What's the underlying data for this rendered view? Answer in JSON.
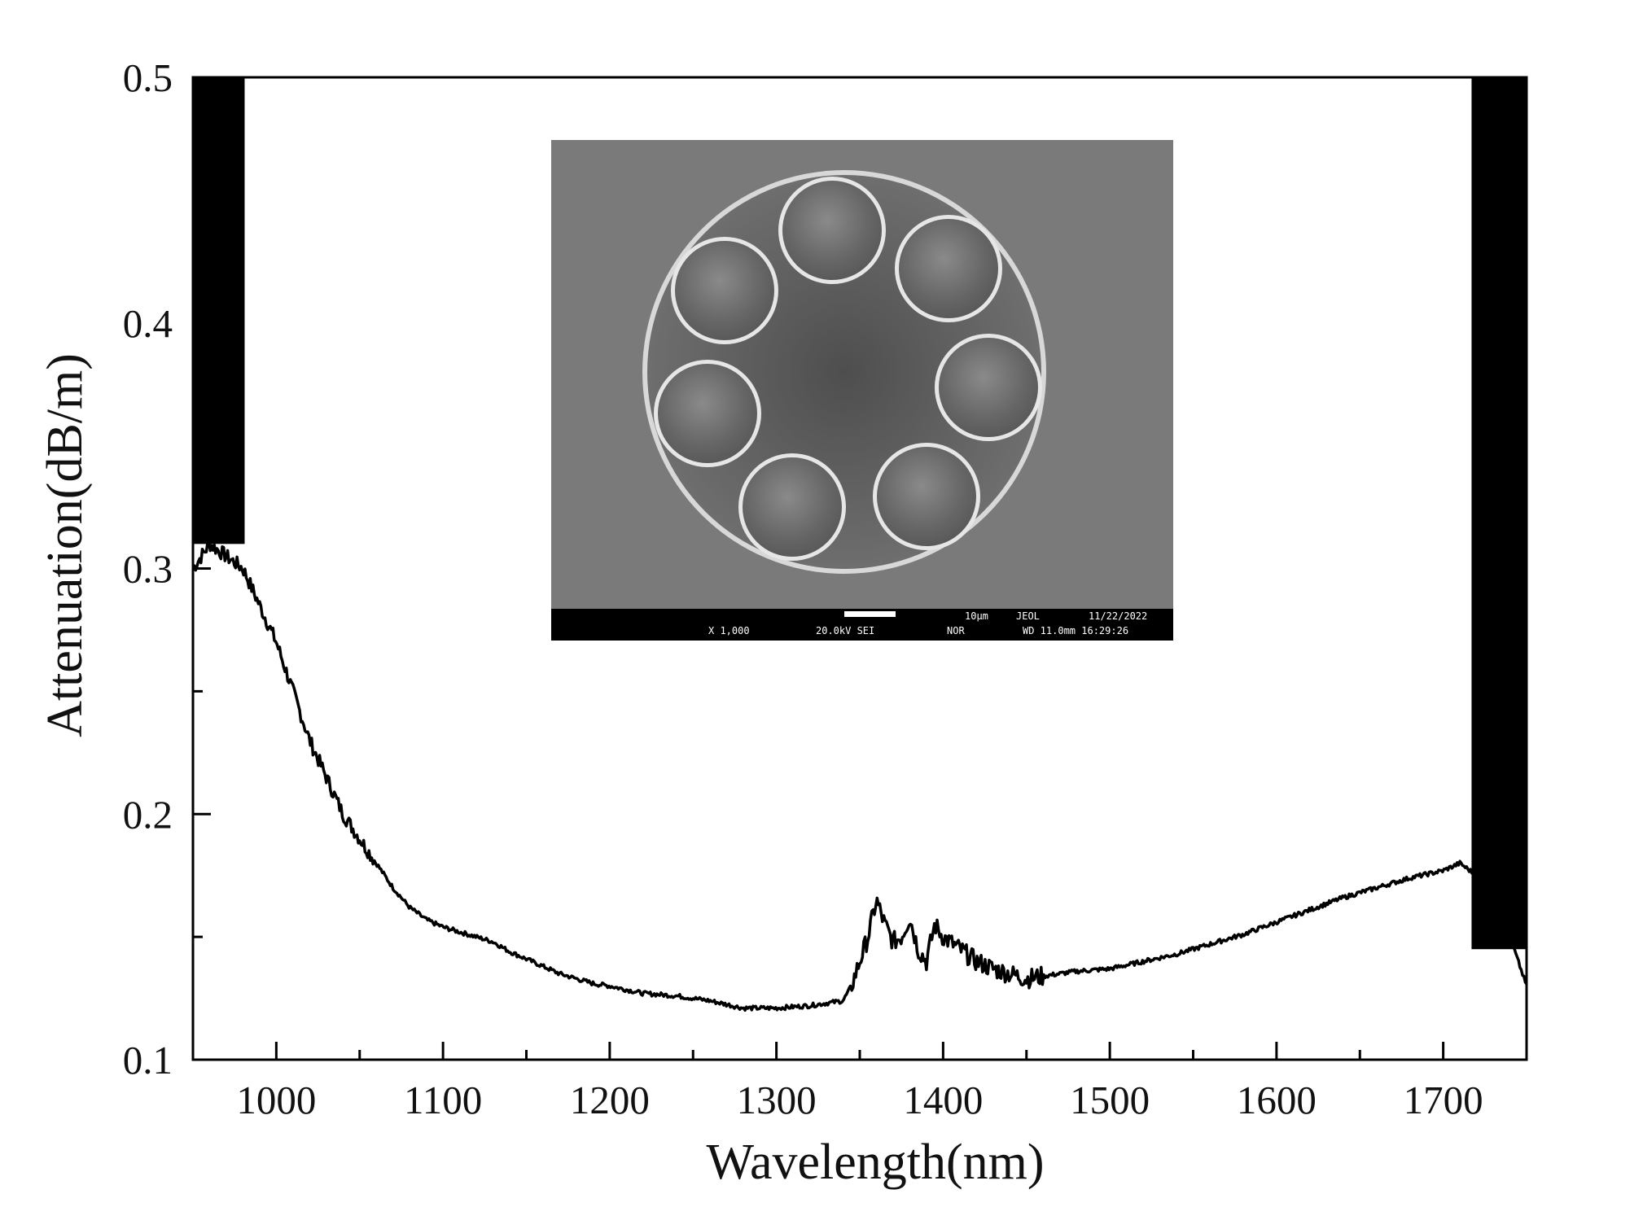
{
  "chart_data": {
    "type": "line",
    "title": "",
    "xlabel": "Wavelength(nm)",
    "ylabel": "Attenuation(dB/m)",
    "xlim": [
      950,
      1750
    ],
    "ylim": [
      0.1,
      0.5
    ],
    "x_ticks": [
      1000,
      1100,
      1200,
      1300,
      1400,
      1500,
      1600,
      1700
    ],
    "x_tick_labels": [
      "1000",
      "1100",
      "1200",
      "1300",
      "1400",
      "1500",
      "1600",
      "1700"
    ],
    "y_ticks": [
      0.1,
      0.2,
      0.3,
      0.4,
      0.5
    ],
    "y_tick_labels": [
      "0.1",
      "0.2",
      "0.3",
      "0.4",
      "0.5"
    ],
    "grid": false,
    "legend": "none",
    "line_color": "#000000",
    "series": [
      {
        "x": [
          950,
          960,
          970,
          980,
          990,
          1000,
          1010,
          1020,
          1030,
          1040,
          1050,
          1060,
          1070,
          1080,
          1090,
          1100,
          1110,
          1120,
          1130,
          1140,
          1150,
          1160,
          1170,
          1180,
          1190,
          1200,
          1220,
          1240,
          1260,
          1280,
          1300,
          1320,
          1340,
          1345,
          1350,
          1355,
          1360,
          1365,
          1370,
          1375,
          1380,
          1385,
          1390,
          1395,
          1400,
          1410,
          1420,
          1430,
          1440,
          1450,
          1460,
          1480,
          1500,
          1520,
          1540,
          1560,
          1580,
          1600,
          1620,
          1640,
          1660,
          1680,
          1700,
          1710,
          1720,
          1730,
          1740,
          1750
        ],
        "y": [
          0.3,
          0.31,
          0.305,
          0.3,
          0.285,
          0.27,
          0.25,
          0.23,
          0.215,
          0.2,
          0.19,
          0.18,
          0.17,
          0.162,
          0.157,
          0.154,
          0.152,
          0.15,
          0.148,
          0.144,
          0.141,
          0.138,
          0.135,
          0.133,
          0.131,
          0.13,
          0.127,
          0.126,
          0.124,
          0.121,
          0.121,
          0.122,
          0.124,
          0.13,
          0.14,
          0.15,
          0.165,
          0.155,
          0.148,
          0.15,
          0.158,
          0.145,
          0.14,
          0.155,
          0.15,
          0.145,
          0.14,
          0.137,
          0.135,
          0.133,
          0.134,
          0.136,
          0.137,
          0.14,
          0.143,
          0.147,
          0.151,
          0.156,
          0.161,
          0.166,
          0.17,
          0.174,
          0.177,
          0.18,
          0.175,
          0.165,
          0.15,
          0.13
        ]
      }
    ],
    "noise_bands": [
      {
        "x_start": 950,
        "x_end": 981,
        "y_low": 0.31,
        "y_high": 0.5
      },
      {
        "x_start": 1717,
        "x_end": 1750,
        "y_low": 0.145,
        "y_high": 0.5
      }
    ]
  },
  "inset": {
    "description_text": "",
    "info_bar": {
      "scale_label": "10μm",
      "maker": "JEOL",
      "date": "11/22/2022",
      "magnification": "X 1,000",
      "voltage": "20.0kV SEI",
      "mode": "NOR",
      "working_distance": "WD 11.0mm 16:29:26"
    },
    "background_color": "#7a7a7a"
  }
}
